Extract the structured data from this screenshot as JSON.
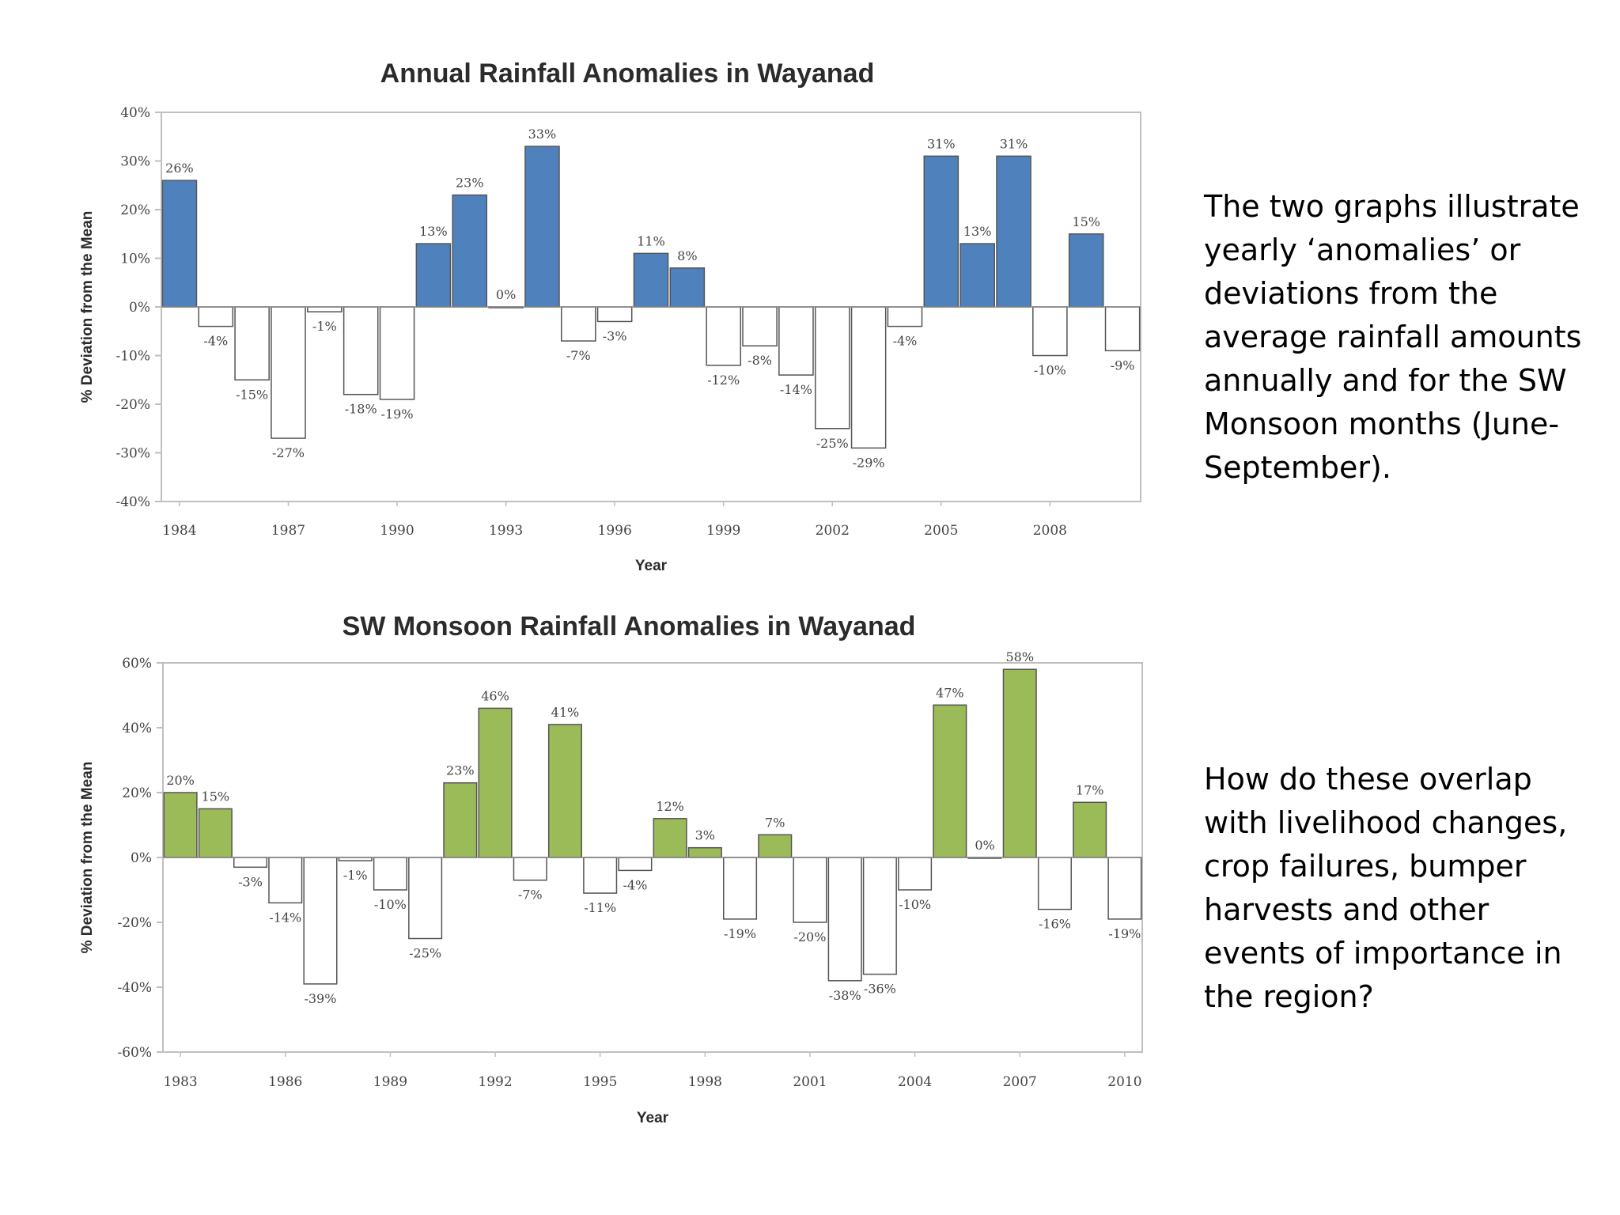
{
  "side_text": {
    "paragraph_1": "The two graphs illustrate yearly ‘anomalies’ or deviations from the average rainfall amounts annually and for the SW Monsoon months (June-September).",
    "paragraph_2": "How do these overlap with livelihood changes, crop failures, bumper harvests and other events of importance in the region?"
  },
  "colors": {
    "annual_positive": "#4f81bd",
    "monsoon_positive": "#9bbb59",
    "negative": "#ffffff",
    "bar_border": "#555555",
    "plot_border": "#bfbfbf"
  },
  "chart_data": [
    {
      "type": "bar",
      "title": "Annual Rainfall Anomalies in Wayanad",
      "xlabel": "Year",
      "ylabel": "% Deviation from the Mean",
      "ylim": [
        -40,
        40
      ],
      "yticks": [
        "40%",
        "30%",
        "20%",
        "10%",
        "0%",
        "-10%",
        "-20%",
        "-30%",
        "-40%"
      ],
      "ytick_values": [
        40,
        30,
        20,
        10,
        0,
        -10,
        -20,
        -30,
        -40
      ],
      "xticks": [
        "1984",
        "1987",
        "1990",
        "1993",
        "1996",
        "1999",
        "2002",
        "2005",
        "2008"
      ],
      "categories": [
        "1984",
        "1985",
        "1986",
        "1987",
        "1988",
        "1989",
        "1990",
        "1991",
        "1992",
        "1993",
        "1994",
        "1995",
        "1996",
        "1997",
        "1998",
        "1999",
        "2000",
        "2001",
        "2002",
        "2003",
        "2004",
        "2005",
        "2006",
        "2007",
        "2008",
        "2009",
        "2010"
      ],
      "values": [
        26,
        -4,
        -15,
        -27,
        -1,
        -18,
        -19,
        13,
        23,
        0,
        33,
        -7,
        -3,
        11,
        8,
        -12,
        -8,
        -14,
        -25,
        -29,
        -4,
        31,
        13,
        31,
        -10,
        15,
        -9
      ],
      "labels": [
        "26%",
        "-4%",
        "-15%",
        "-27%",
        "-1%",
        "-18%",
        "-19%",
        "13%",
        "23%",
        "0%",
        "33%",
        "-7%",
        "-3%",
        "11%",
        "8%",
        "-12%",
        "-8%",
        "-14%",
        "-25%",
        "-29%",
        "-4%",
        "31%",
        "13%",
        "31%",
        "-10%",
        "15%",
        "-9%"
      ],
      "grid": false,
      "legend": "none"
    },
    {
      "type": "bar",
      "title": "SW Monsoon Rainfall Anomalies in Wayanad",
      "xlabel": "Year",
      "ylabel": "% Deviation from the Mean",
      "ylim": [
        -60,
        60
      ],
      "yticks": [
        "60%",
        "40%",
        "20%",
        "0%",
        "-20%",
        "-40%",
        "-60%"
      ],
      "ytick_values": [
        60,
        40,
        20,
        0,
        -20,
        -40,
        -60
      ],
      "xticks": [
        "1983",
        "1986",
        "1989",
        "1992",
        "1995",
        "1998",
        "2001",
        "2004",
        "2007",
        "2010"
      ],
      "categories": [
        "1983",
        "1984",
        "1985",
        "1986",
        "1987",
        "1988",
        "1989",
        "1990",
        "1991",
        "1992",
        "1993",
        "1994",
        "1995",
        "1996",
        "1997",
        "1998",
        "1999",
        "2000",
        "2001",
        "2002",
        "2003",
        "2004",
        "2005",
        "2006",
        "2007",
        "2008",
        "2009",
        "2010"
      ],
      "values": [
        20,
        15,
        -3,
        -14,
        -39,
        -1,
        -10,
        -25,
        23,
        46,
        -7,
        41,
        -11,
        -4,
        12,
        3,
        -19,
        7,
        -20,
        -38,
        -36,
        -10,
        47,
        0,
        58,
        -16,
        17,
        -19
      ],
      "labels": [
        "20%",
        "15%",
        "-3%",
        "-14%",
        "-39%",
        "-1%",
        "-10%",
        "-25%",
        "23%",
        "46%",
        "-7%",
        "41%",
        "-11%",
        "-4%",
        "12%",
        "3%",
        "-19%",
        "7%",
        "-20%",
        "-38%",
        "-36%",
        "-10%",
        "47%",
        "0%",
        "58%",
        "-16%",
        "17%",
        "-19%"
      ],
      "grid": false,
      "legend": "none"
    }
  ]
}
